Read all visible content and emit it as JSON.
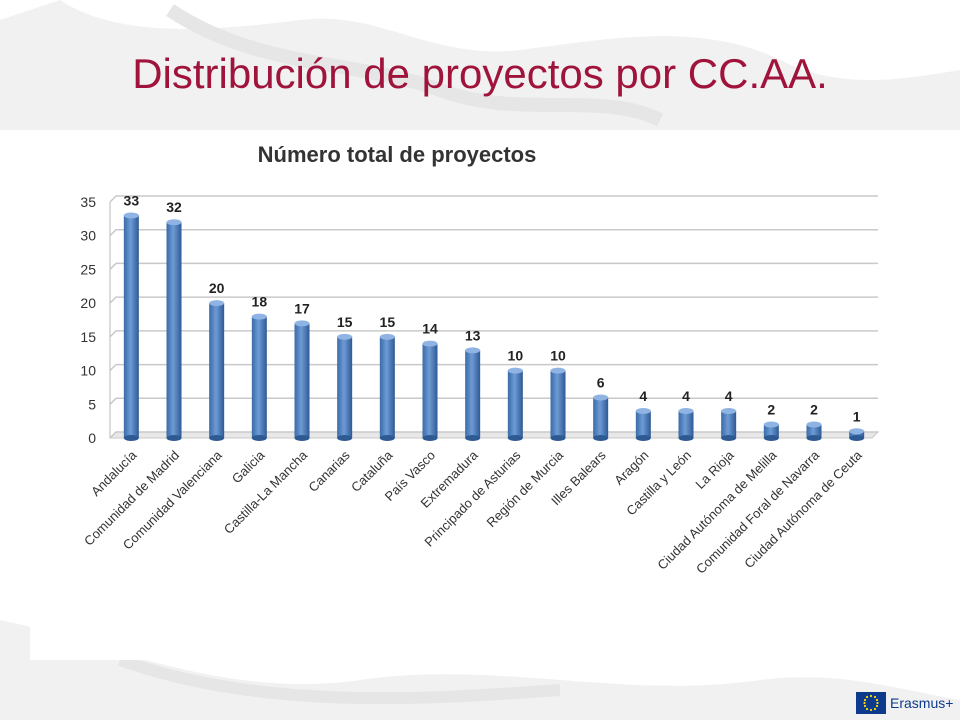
{
  "slide": {
    "title": "Distribución de proyectos por CC.AA.",
    "logo_text": "Erasmus+",
    "colors": {
      "title": "#a0143c",
      "bar": "#4f81bd",
      "logo": "#0d3a8c"
    }
  },
  "chart_data": {
    "type": "bar",
    "title": "Número total de proyectos",
    "xlabel": "",
    "ylabel": "",
    "ylim": [
      0,
      35
    ],
    "yticks": [
      0,
      5,
      10,
      15,
      20,
      25,
      30,
      35
    ],
    "grid": true,
    "legend": "none",
    "categories": [
      "Andalucía",
      "Comunidad de Madrid",
      "Comunidad Valenciana",
      "Galicia",
      "Castilla-La Mancha",
      "Canarias",
      "Cataluña",
      "País Vasco",
      "Extremadura",
      "Principado de Asturias",
      "Región de Murcia",
      "Illes Balears",
      "Aragón",
      "Castilla y León",
      "La Rioja",
      "Ciudad Autónoma de Melilla",
      "Comunidad Foral de Navarra",
      "Ciudad Autónoma de Ceuta"
    ],
    "values": [
      33,
      32,
      20,
      18,
      17,
      15,
      15,
      14,
      13,
      10,
      10,
      6,
      4,
      4,
      4,
      2,
      2,
      1
    ],
    "data_labels": true
  }
}
